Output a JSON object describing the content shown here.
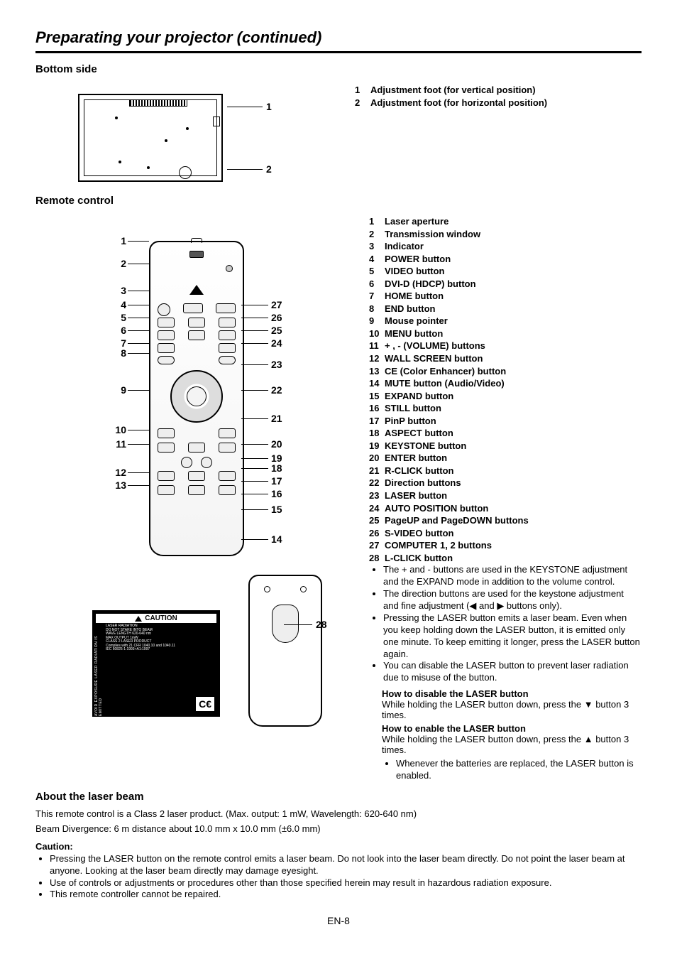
{
  "page_title": "Preparating your projector (continued)",
  "sections": {
    "bottom": {
      "heading": "Bottom side",
      "callouts": [
        {
          "n": "1",
          "label": "Adjustment foot (for vertical position)"
        },
        {
          "n": "2",
          "label": "Adjustment foot (for horizontal position)"
        }
      ],
      "diagram_labels": {
        "n1": "1",
        "n2": "2"
      }
    },
    "remote": {
      "heading": "Remote control",
      "callouts": [
        {
          "n": "1",
          "label": "Laser aperture"
        },
        {
          "n": "2",
          "label": "Transmission window"
        },
        {
          "n": "3",
          "label": "Indicator"
        },
        {
          "n": "4",
          "label": "POWER button"
        },
        {
          "n": "5",
          "label": "VIDEO button"
        },
        {
          "n": "6",
          "label": "DVI-D (HDCP) button"
        },
        {
          "n": "7",
          "label": "HOME button"
        },
        {
          "n": "8",
          "label": "END button"
        },
        {
          "n": "9",
          "label": "Mouse pointer"
        },
        {
          "n": "10",
          "label": "MENU button"
        },
        {
          "n": "11",
          "label": "+ , - (VOLUME) buttons"
        },
        {
          "n": "12",
          "label": "WALL SCREEN button"
        },
        {
          "n": "13",
          "label": "CE (Color Enhancer) button"
        },
        {
          "n": "14",
          "label": "MUTE button (Audio/Video)"
        },
        {
          "n": "15",
          "label": "EXPAND button"
        },
        {
          "n": "16",
          "label": "STILL button"
        },
        {
          "n": "17",
          "label": "PinP button"
        },
        {
          "n": "18",
          "label": "ASPECT button"
        },
        {
          "n": "19",
          "label": "KEYSTONE button"
        },
        {
          "n": "20",
          "label": "ENTER button"
        },
        {
          "n": "21",
          "label": "R-CLICK button"
        },
        {
          "n": "22",
          "label": "Direction buttons"
        },
        {
          "n": "23",
          "label": "LASER button"
        },
        {
          "n": "24",
          "label": "AUTO POSITION button"
        },
        {
          "n": "25",
          "label": "PageUP and PageDOWN buttons"
        },
        {
          "n": "26",
          "label": "S-VIDEO button"
        },
        {
          "n": "27",
          "label": "COMPUTER 1, 2 buttons"
        },
        {
          "n": "28",
          "label": "L-CLICK button"
        }
      ],
      "notes": [
        "The + and - buttons are used in the KEYSTONE adjustment and the EXPAND mode in addition to the volume control.",
        "The direction buttons are used for the keystone adjustment and fine adjustment (◀ and ▶ buttons only).",
        "Pressing the LASER button emits a laser beam. Even when you keep holding down the LASER button, it is emitted only one minute. To keep emitting it longer, press the LASER button again.",
        "You can disable the LASER button to prevent laser radiation due to misuse of the button."
      ],
      "disable_heading": "How to disable the LASER button",
      "disable_text": "While holding the LASER button down, press the ▼ button 3 times.",
      "enable_heading": "How to enable the LASER button",
      "enable_text": "While holding the LASER button down, press the ▲ button 3 times.",
      "nested_note": "Whenever the batteries are replaced, the LASER button is enabled.",
      "diagram_left": [
        "1",
        "2",
        "3",
        "4",
        "5",
        "6",
        "7",
        "8",
        "9",
        "10",
        "11",
        "12",
        "13"
      ],
      "diagram_right": [
        "27",
        "26",
        "25",
        "24",
        "23",
        "22",
        "21",
        "20",
        "19",
        "18",
        "17",
        "16",
        "15",
        "14"
      ],
      "diagram_back": "28",
      "caution_plate": "CAUTION"
    },
    "laser": {
      "heading": "About the laser beam",
      "line1": "This remote control is a Class 2 laser product. (Max. output: 1 mW, Wavelength: 620-640 nm)",
      "line2": "Beam Divergence: 6 m distance about 10.0 mm x 10.0 mm (±6.0 mm)",
      "caution_label": "Caution:",
      "cautions": [
        "Pressing the LASER button on the remote control emits a laser beam. Do not look into the laser beam directly. Do not point the laser beam at anyone. Looking at the laser beam directly may damage eyesight.",
        "Use of controls or adjustments or procedures other than those specified herein may result in hazardous radiation exposure.",
        "This remote controller cannot be repaired."
      ]
    }
  },
  "footer": "EN-8",
  "styling": {
    "title_fontsize": 22,
    "heading_fontsize": 15,
    "body_fontsize": 13,
    "rule_color": "#000000",
    "background": "#ffffff"
  }
}
